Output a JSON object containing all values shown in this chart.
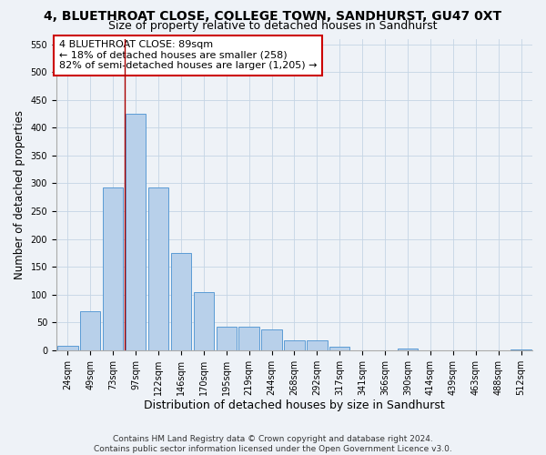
{
  "title1": "4, BLUETHROAT CLOSE, COLLEGE TOWN, SANDHURST, GU47 0XT",
  "title2": "Size of property relative to detached houses in Sandhurst",
  "xlabel": "Distribution of detached houses by size in Sandhurst",
  "ylabel": "Number of detached properties",
  "categories": [
    "24sqm",
    "49sqm",
    "73sqm",
    "97sqm",
    "122sqm",
    "146sqm",
    "170sqm",
    "195sqm",
    "219sqm",
    "244sqm",
    "268sqm",
    "292sqm",
    "317sqm",
    "341sqm",
    "366sqm",
    "390sqm",
    "414sqm",
    "439sqm",
    "463sqm",
    "488sqm",
    "512sqm"
  ],
  "values": [
    8,
    70,
    292,
    425,
    292,
    175,
    105,
    43,
    42,
    38,
    17,
    17,
    7,
    0,
    0,
    3,
    0,
    0,
    0,
    0,
    2
  ],
  "bar_color": "#b8d0ea",
  "bar_edge_color": "#5b9bd5",
  "grid_color": "#c5d5e5",
  "background_color": "#eef2f7",
  "vline_x": 2.5,
  "vline_color": "#aa0000",
  "annotation_line1": "4 BLUETHROAT CLOSE: 89sqm",
  "annotation_line2": "← 18% of detached houses are smaller (258)",
  "annotation_line3": "82% of semi-detached houses are larger (1,205) →",
  "annotation_box_color": "#ffffff",
  "annotation_box_edge": "#cc0000",
  "ylim": [
    0,
    560
  ],
  "yticks": [
    0,
    50,
    100,
    150,
    200,
    250,
    300,
    350,
    400,
    450,
    500,
    550
  ],
  "footnote_line1": "Contains HM Land Registry data © Crown copyright and database right 2024.",
  "footnote_line2": "Contains public sector information licensed under the Open Government Licence v3.0.",
  "title1_fontsize": 10,
  "title2_fontsize": 9,
  "xlabel_fontsize": 9,
  "ylabel_fontsize": 8.5,
  "tick_fontsize": 7,
  "annotation_fontsize": 8,
  "footnote_fontsize": 6.5
}
